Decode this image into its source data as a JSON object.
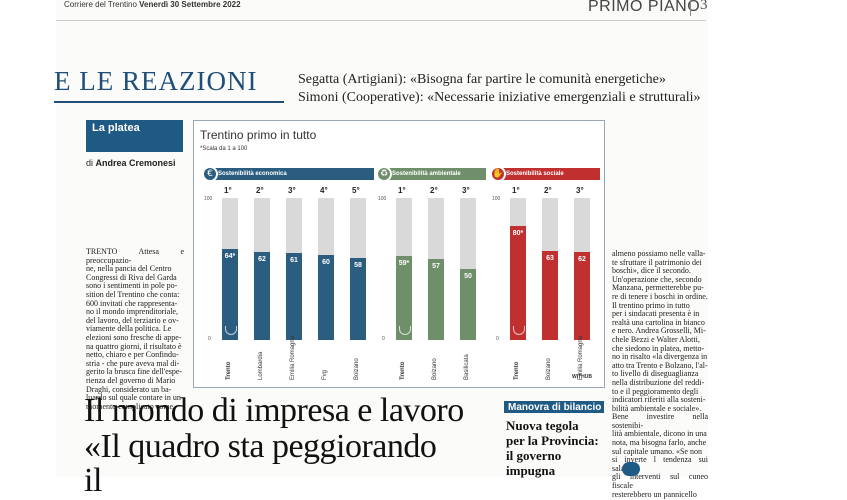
{
  "header": {
    "paper": "Corriere del Trentino",
    "date": "Venerdì 30 Settembre 2022",
    "section": "PRIMO PIANO",
    "page_number": "3"
  },
  "banner": {
    "title": "E LE REAZIONI",
    "quote1": "Segatta (Artigiani): «Bisogna far partire le comunità energetiche»",
    "quote2": "Simoni (Cooperative): «Necessarie iniziative emergenziali e strutturali»"
  },
  "column": {
    "title": "La platea",
    "byline_prefix": "di",
    "author": "Andrea Cremonesi",
    "left_lines": [
      "TRENTO Attesa e preoccupazio-",
      "ne, nella pancia del Centro",
      "Congressi di Riva del Garda",
      "sono i sentimenti in pole po-",
      "sition del Trentino che conta:",
      "600 invitati che rappresenta-",
      "no il mondo imprenditoriale,",
      "del lavoro, del terziario e ov-",
      "viamente della politica. Le",
      "elezioni sono fresche di appe-",
      "na quattro giorni, il risultato è",
      "netto, chiaro e per Confindu-",
      "stria - che pure aveva mal di-",
      "gerito la brusca fine dell'espe-",
      "rienza del governo di Mario",
      "Draghi, considerato un ba-",
      "luardo sul quale contare in un",
      "momento complicato come"
    ],
    "right_lines": [
      "almeno possiamo nelle valla-",
      "te sfruttare il patrimonio dei",
      "boschi», dice il secondo.",
      "Un'operazione che, secondo",
      "Manzana, permetterebbe pu-",
      "re di tenere i boschi in ordine.",
      "Il trentino primo in tutto",
      "per i sindacati presenta è in",
      "realtà una cartolina in bianco",
      "e nero. Andrea Grosselli, Mi-",
      "chele Bezzi e Walter Alotti,",
      "che siedono in platea, metto-",
      "no in risalto «la divergenza in",
      "atto tra Trento e Bolzano, l'al-",
      "to livello di diseguaglianza",
      "nella distribuzione del reddi-",
      "to e il peggioramento degli",
      "indicatori riferiti alla sosteni-",
      "bilità ambientale e sociale».",
      "Bene investire nella sostenibi-",
      "lità ambientale, dicono in una",
      "nota, ma bisogna farlo, anche",
      "sul capitale umano. «Se non",
      "si inverte l tendenza sui salari,",
      "gli interventi sul cuneo fiscale",
      "resterebbero un pannicello"
    ]
  },
  "chart_data": {
    "type": "bar",
    "title": "Trentino primo in tutto",
    "subtitle": "*Scala da 1 a 100",
    "source": "WITHUB",
    "ylim": [
      0,
      100
    ],
    "groups": [
      {
        "name": "Sostenibilità economica",
        "color": "#2b5d80",
        "ranks": [
          "1°",
          "2°",
          "3°",
          "4°",
          "5°"
        ],
        "categories": [
          "Trento",
          "Lombardia",
          "Emilia Romagna",
          "Fvg",
          "Bolzano"
        ],
        "values": [
          64,
          62,
          61,
          60,
          58
        ],
        "labels": [
          "64*",
          "62",
          "61",
          "60",
          "58"
        ],
        "axis_top": "100",
        "axis_bottom": "0"
      },
      {
        "name": "Sostenibilità ambientale",
        "color": "#6f8f6a",
        "ranks": [
          "1°",
          "2°",
          "3°"
        ],
        "categories": [
          "Trento",
          "Bolzano",
          "Basilicata"
        ],
        "values": [
          59,
          57,
          50
        ],
        "labels": [
          "59*",
          "57",
          "50"
        ],
        "axis_top": "100",
        "axis_bottom": "0"
      },
      {
        "name": "Sostenibilità sociale",
        "color": "#c0302e",
        "ranks": [
          "1°",
          "2°",
          "3°"
        ],
        "categories": [
          "Trento",
          "Bolzano",
          "Emilia Romagna"
        ],
        "values": [
          80,
          63,
          62
        ],
        "labels": [
          "80*",
          "63",
          "62"
        ],
        "axis_top": "100",
        "axis_bottom": "0"
      }
    ]
  },
  "headline": {
    "line1": "Il mondo di impresa e lavoro",
    "line2": "«Il quadro sta peggiorando",
    "line3": "il"
  },
  "sidebar": {
    "label": "Manovra di bilancio",
    "lines": [
      "Nuova tegola",
      "per la Provincia:",
      "il governo",
      "impugna"
    ]
  },
  "colors": {
    "brand_blue": "#1f5a85",
    "banner_blue": "#1f4e79"
  }
}
